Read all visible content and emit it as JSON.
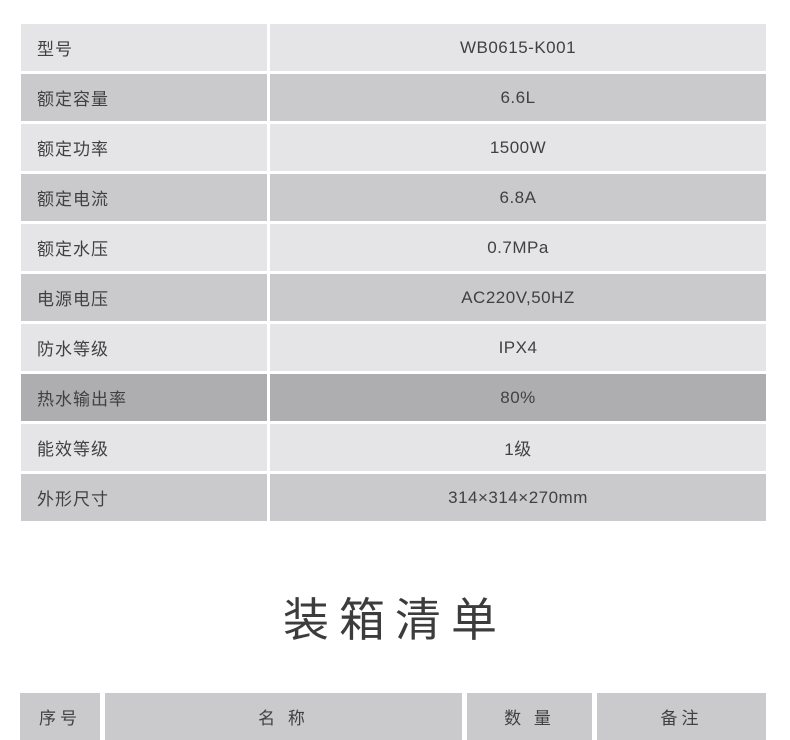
{
  "colors": {
    "background": "#ffffff",
    "row_light": "#e5e4e7",
    "row_medium": "#cac9cc",
    "row_highlight": "#aeadb0",
    "text": "#414141"
  },
  "spec_table": {
    "rows": [
      {
        "label": "型号",
        "value": "WB0615-K001"
      },
      {
        "label": "额定容量",
        "value": "6.6L"
      },
      {
        "label": "额定功率",
        "value": "1500W"
      },
      {
        "label": "额定电流",
        "value": "6.8A"
      },
      {
        "label": "额定水压",
        "value": "0.7MPa"
      },
      {
        "label": "电源电压",
        "value": "AC220V,50HZ"
      },
      {
        "label": "防水等级",
        "value": "IPX4"
      },
      {
        "label": "热水输出率",
        "value": "80%"
      },
      {
        "label": "能效等级",
        "value": "1级"
      },
      {
        "label": "外形尺寸",
        "value": "314×314×270mm"
      }
    ]
  },
  "packing_list": {
    "title": "装箱清单",
    "headers": [
      "序号",
      "名 称",
      "数 量",
      "备注"
    ]
  }
}
